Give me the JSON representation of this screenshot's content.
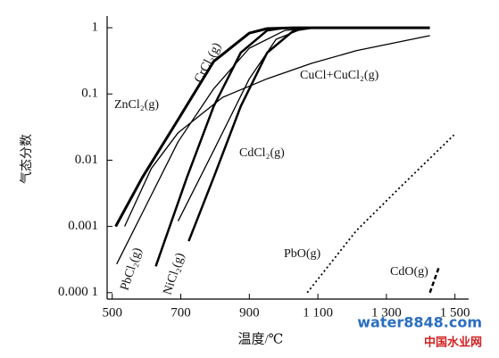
{
  "chart_data": {
    "type": "line",
    "xlabel": "温度/℃",
    "ylabel": "气态分数",
    "xlim": [
      485,
      1540
    ],
    "ylim": [
      8e-05,
      1.5
    ],
    "yscale": "log",
    "xticks": [
      500,
      700,
      900,
      {
        "value": 1100,
        "label": "1 100"
      },
      {
        "value": 1300,
        "label": "1 300"
      },
      {
        "value": 1500,
        "label": "1 500"
      }
    ],
    "yticks": [
      {
        "value": 0.0001,
        "label": "0.000 1"
      },
      0.001,
      0.01,
      0.1,
      1
    ],
    "series": [
      {
        "name": "ZnCl₂(g)",
        "color": "#000",
        "linewidth": 3,
        "style": "solid",
        "x": [
          510,
          588,
          692,
          796,
          900,
          952,
          1030,
          1427
        ],
        "values": [
          0.001,
          0.0055,
          0.041,
          0.31,
          0.83,
          0.97,
          1,
          1
        ]
      },
      {
        "name": "CrCl₂(g)",
        "color": "#000",
        "linewidth": 2.5,
        "style": "solid",
        "x": [
          627,
          718,
          796,
          875,
          952,
          1004
        ],
        "values": [
          0.00025,
          0.0055,
          0.065,
          0.42,
          0.91,
          1
        ]
      },
      {
        "name": "PbCl₂(g)",
        "color": "#000",
        "linewidth": 1.3,
        "style": "solid",
        "x": [
          513,
          588,
          692,
          796,
          900,
          1004,
          1082
        ],
        "values": [
          0.00027,
          0.0016,
          0.019,
          0.12,
          0.49,
          0.91,
          1
        ]
      },
      {
        "name": "NiCl₂(g)",
        "color": "#000",
        "linewidth": 2.5,
        "style": "solid",
        "x": [
          723,
          796,
          875,
          952,
          1030,
          1082
        ],
        "values": [
          0.0006,
          0.0055,
          0.065,
          0.42,
          0.91,
          1
        ]
      },
      {
        "name": "CdCl₂(g)",
        "color": "#000",
        "linewidth": 1.3,
        "style": "solid",
        "x": [
          692,
          796,
          900,
          978,
          1056
        ],
        "values": [
          0.0012,
          0.014,
          0.17,
          0.67,
          0.97
        ]
      },
      {
        "name": "CuCl+CuCl₂(g)",
        "color": "#000",
        "linewidth": 1.3,
        "style": "solid",
        "x": [
          536,
          614,
          692,
          822,
          952,
          1082,
          1212,
          1427
        ],
        "values": [
          0.001,
          0.0075,
          0.026,
          0.089,
          0.17,
          0.29,
          0.45,
          0.76
        ]
      },
      {
        "name": "PbO(g)",
        "color": "#000",
        "linewidth": 1.8,
        "style": "dotted",
        "x": [
          1069,
          1212,
          1342,
          1497
        ],
        "values": [
          0.0001,
          0.00086,
          0.004,
          0.024
        ]
      },
      {
        "name": "CdO(g)",
        "color": "#000",
        "linewidth": 2.5,
        "style": "dashed",
        "x": [
          1427,
          1453
        ],
        "values": [
          0.0001,
          0.00024
        ]
      }
    ],
    "watermark": [
      "water8848.com",
      "中国水业网"
    ]
  }
}
